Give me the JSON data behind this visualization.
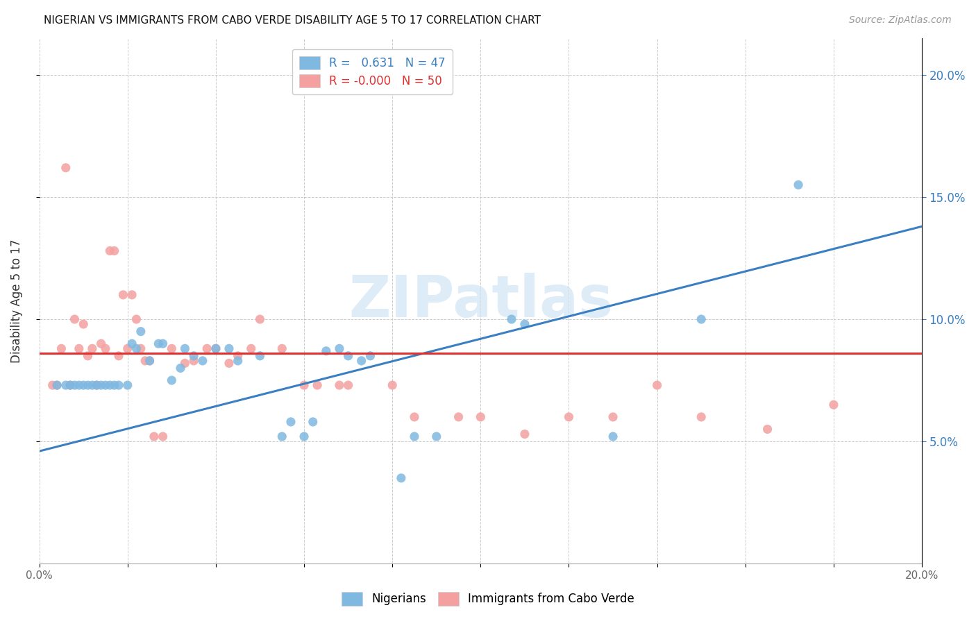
{
  "title": "NIGERIAN VS IMMIGRANTS FROM CABO VERDE DISABILITY AGE 5 TO 17 CORRELATION CHART",
  "source": "Source: ZipAtlas.com",
  "ylabel_label": "Disability Age 5 to 17",
  "xlim": [
    0.0,
    0.2
  ],
  "ylim": [
    0.0,
    0.215
  ],
  "xticks": [
    0.0,
    0.02,
    0.04,
    0.06,
    0.08,
    0.1,
    0.12,
    0.14,
    0.16,
    0.18,
    0.2
  ],
  "xtick_labels_show": [
    "0.0%",
    "",
    "",
    "",
    "",
    "",
    "",
    "",
    "",
    "",
    "20.0%"
  ],
  "yticks_right": [
    0.05,
    0.1,
    0.15,
    0.2
  ],
  "ytick_right_labels": [
    "5.0%",
    "10.0%",
    "15.0%",
    "20.0%"
  ],
  "legend_r1": "R =   0.631   N = 47",
  "legend_r2": "R = -0.000   N = 50",
  "blue_color": "#7fb8e0",
  "pink_color": "#f4a0a0",
  "blue_line_color": "#3a7fc1",
  "pink_line_color": "#e03030",
  "watermark_text": "ZIPatlas",
  "watermark_color": "#d0e4f5",
  "legend_label1": "Nigerians",
  "legend_label2": "Immigrants from Cabo Verde",
  "blue_scatter": [
    [
      0.004,
      0.073
    ],
    [
      0.006,
      0.073
    ],
    [
      0.007,
      0.073
    ],
    [
      0.008,
      0.073
    ],
    [
      0.009,
      0.073
    ],
    [
      0.01,
      0.073
    ],
    [
      0.011,
      0.073
    ],
    [
      0.012,
      0.073
    ],
    [
      0.013,
      0.073
    ],
    [
      0.014,
      0.073
    ],
    [
      0.015,
      0.073
    ],
    [
      0.016,
      0.073
    ],
    [
      0.017,
      0.073
    ],
    [
      0.018,
      0.073
    ],
    [
      0.02,
      0.073
    ],
    [
      0.021,
      0.09
    ],
    [
      0.022,
      0.088
    ],
    [
      0.023,
      0.095
    ],
    [
      0.025,
      0.083
    ],
    [
      0.027,
      0.09
    ],
    [
      0.028,
      0.09
    ],
    [
      0.03,
      0.075
    ],
    [
      0.032,
      0.08
    ],
    [
      0.033,
      0.088
    ],
    [
      0.035,
      0.085
    ],
    [
      0.037,
      0.083
    ],
    [
      0.04,
      0.088
    ],
    [
      0.043,
      0.088
    ],
    [
      0.045,
      0.083
    ],
    [
      0.05,
      0.085
    ],
    [
      0.055,
      0.052
    ],
    [
      0.057,
      0.058
    ],
    [
      0.06,
      0.052
    ],
    [
      0.062,
      0.058
    ],
    [
      0.065,
      0.087
    ],
    [
      0.068,
      0.088
    ],
    [
      0.07,
      0.085
    ],
    [
      0.073,
      0.083
    ],
    [
      0.075,
      0.085
    ],
    [
      0.082,
      0.035
    ],
    [
      0.085,
      0.052
    ],
    [
      0.09,
      0.052
    ],
    [
      0.107,
      0.1
    ],
    [
      0.11,
      0.098
    ],
    [
      0.13,
      0.052
    ],
    [
      0.15,
      0.1
    ],
    [
      0.172,
      0.155
    ]
  ],
  "pink_scatter": [
    [
      0.003,
      0.073
    ],
    [
      0.004,
      0.073
    ],
    [
      0.005,
      0.088
    ],
    [
      0.006,
      0.162
    ],
    [
      0.007,
      0.073
    ],
    [
      0.008,
      0.1
    ],
    [
      0.009,
      0.088
    ],
    [
      0.01,
      0.098
    ],
    [
      0.011,
      0.085
    ],
    [
      0.012,
      0.088
    ],
    [
      0.013,
      0.073
    ],
    [
      0.014,
      0.09
    ],
    [
      0.015,
      0.088
    ],
    [
      0.016,
      0.128
    ],
    [
      0.017,
      0.128
    ],
    [
      0.018,
      0.085
    ],
    [
      0.019,
      0.11
    ],
    [
      0.02,
      0.088
    ],
    [
      0.021,
      0.11
    ],
    [
      0.022,
      0.1
    ],
    [
      0.023,
      0.088
    ],
    [
      0.024,
      0.083
    ],
    [
      0.025,
      0.083
    ],
    [
      0.026,
      0.052
    ],
    [
      0.028,
      0.052
    ],
    [
      0.03,
      0.088
    ],
    [
      0.033,
      0.082
    ],
    [
      0.035,
      0.083
    ],
    [
      0.038,
      0.088
    ],
    [
      0.04,
      0.088
    ],
    [
      0.043,
      0.082
    ],
    [
      0.045,
      0.085
    ],
    [
      0.048,
      0.088
    ],
    [
      0.05,
      0.1
    ],
    [
      0.055,
      0.088
    ],
    [
      0.06,
      0.073
    ],
    [
      0.063,
      0.073
    ],
    [
      0.068,
      0.073
    ],
    [
      0.07,
      0.073
    ],
    [
      0.08,
      0.073
    ],
    [
      0.085,
      0.06
    ],
    [
      0.095,
      0.06
    ],
    [
      0.1,
      0.06
    ],
    [
      0.11,
      0.053
    ],
    [
      0.12,
      0.06
    ],
    [
      0.13,
      0.06
    ],
    [
      0.14,
      0.073
    ],
    [
      0.15,
      0.06
    ],
    [
      0.165,
      0.055
    ],
    [
      0.18,
      0.065
    ]
  ],
  "blue_line_x": [
    0.0,
    0.2
  ],
  "blue_line_y": [
    0.046,
    0.138
  ],
  "pink_line_x": [
    0.0,
    0.2
  ],
  "pink_line_y": [
    0.086,
    0.086
  ]
}
